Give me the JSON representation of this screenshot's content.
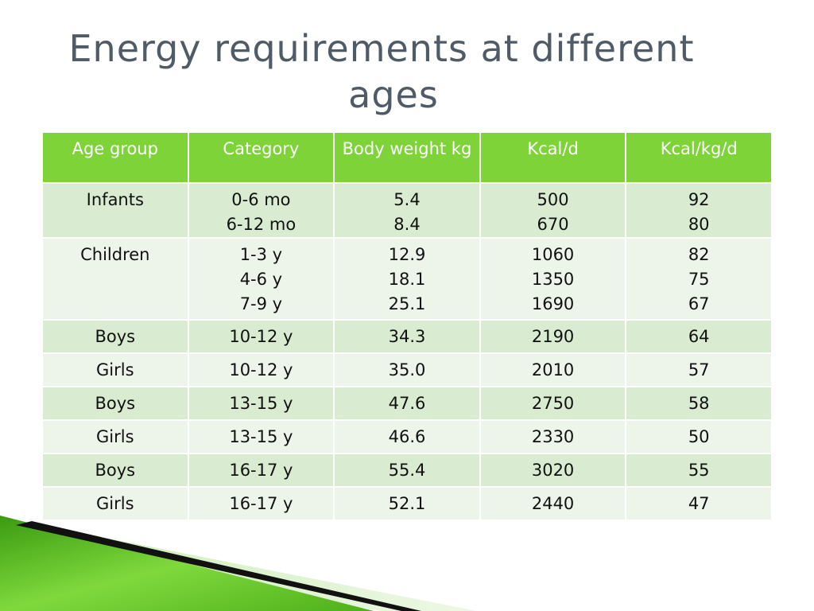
{
  "title": {
    "line1": "Energy requirements at different",
    "line2": "ages"
  },
  "table": {
    "headers": [
      "Age group",
      "Category",
      "Body weight kg",
      "Kcal/d",
      "Kcal/kg/d"
    ],
    "rows": [
      {
        "age_group": "Infants",
        "category": [
          "0-6 mo",
          "6-12 mo"
        ],
        "body_weight": [
          "5.4",
          "8.4"
        ],
        "kcal_d": [
          "500",
          "670"
        ],
        "kcal_kg_d": [
          "92",
          "80"
        ]
      },
      {
        "age_group": "Children",
        "category": [
          "1-3 y",
          "4-6 y",
          "7-9 y"
        ],
        "body_weight": [
          "12.9",
          "18.1",
          "25.1"
        ],
        "kcal_d": [
          "1060",
          "1350",
          "1690"
        ],
        "kcal_kg_d": [
          "82",
          "75",
          "67"
        ]
      },
      {
        "age_group": "Boys",
        "category": [
          "10-12 y"
        ],
        "body_weight": [
          "34.3"
        ],
        "kcal_d": [
          "2190"
        ],
        "kcal_kg_d": [
          "64"
        ]
      },
      {
        "age_group": "Girls",
        "category": [
          "10-12 y"
        ],
        "body_weight": [
          "35.0"
        ],
        "kcal_d": [
          "2010"
        ],
        "kcal_kg_d": [
          "57"
        ]
      },
      {
        "age_group": "Boys",
        "category": [
          "13-15 y"
        ],
        "body_weight": [
          "47.6"
        ],
        "kcal_d": [
          "2750"
        ],
        "kcal_kg_d": [
          "58"
        ]
      },
      {
        "age_group": "Girls",
        "category": [
          "13-15 y"
        ],
        "body_weight": [
          "46.6"
        ],
        "kcal_d": [
          "2330"
        ],
        "kcal_kg_d": [
          "50"
        ]
      },
      {
        "age_group": "Boys",
        "category": [
          "16-17 y"
        ],
        "body_weight": [
          "55.4"
        ],
        "kcal_d": [
          "3020"
        ],
        "kcal_kg_d": [
          "55"
        ]
      },
      {
        "age_group": "Girls",
        "category": [
          "16-17 y"
        ],
        "body_weight": [
          "52.1"
        ],
        "kcal_d": [
          "2440"
        ],
        "kcal_kg_d": [
          "47"
        ]
      }
    ]
  },
  "colors": {
    "title": "#4f5b66",
    "header_bg": "#7ed338",
    "row_dark": "#d9ecd1",
    "row_light": "#edf5ea",
    "deco_green": "#5cbf1f",
    "deco_black": "#111111"
  }
}
